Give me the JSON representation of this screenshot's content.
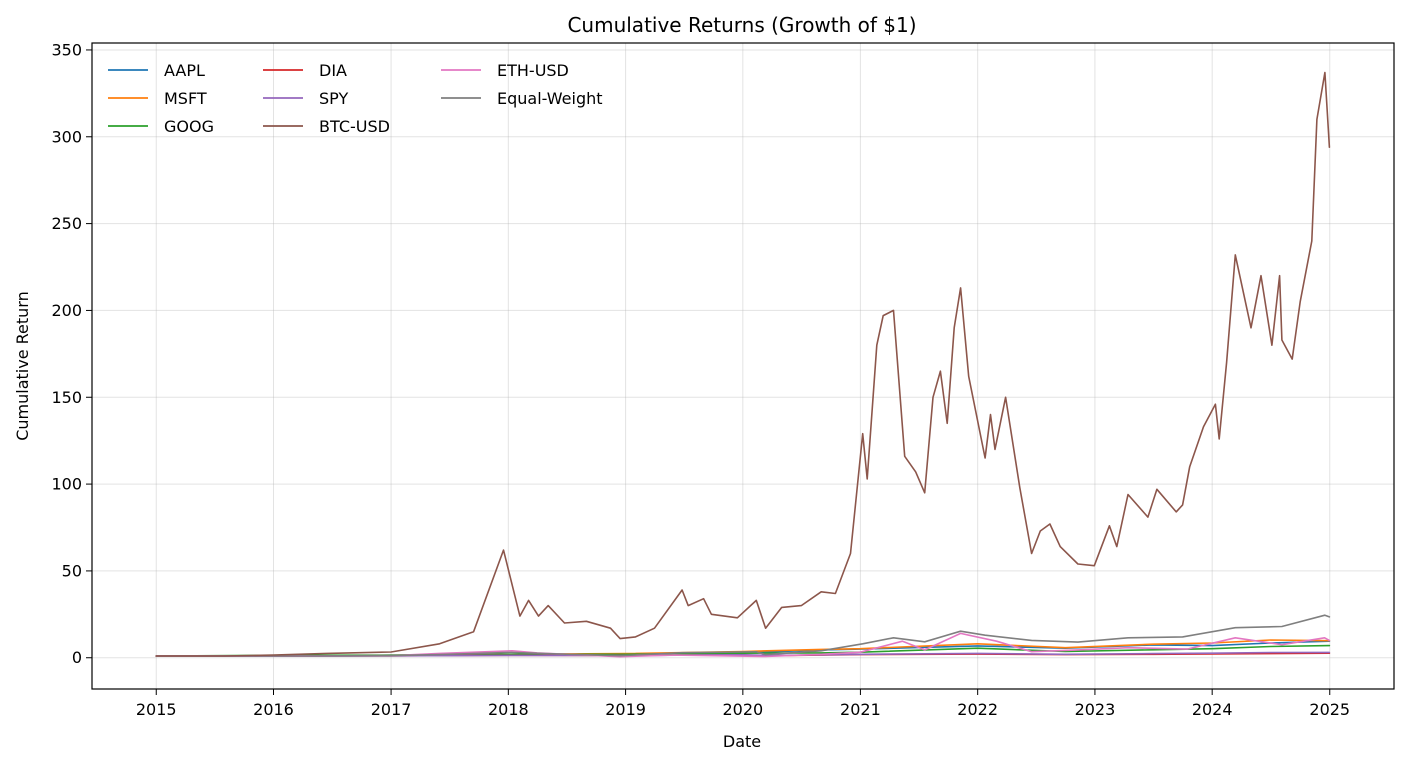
{
  "chart_data": {
    "type": "line",
    "title": "Cumulative Returns (Growth of $1)",
    "xlabel": "Date",
    "ylabel": "Cumulative Return",
    "xlim": [
      "2014-06-15",
      "2025-07-20"
    ],
    "ylim": [
      -18,
      354
    ],
    "xticks": [
      "2015",
      "2016",
      "2017",
      "2018",
      "2019",
      "2020",
      "2021",
      "2022",
      "2023",
      "2024",
      "2025"
    ],
    "yticks": [
      0,
      50,
      100,
      150,
      200,
      250,
      300,
      350
    ],
    "grid": true,
    "legend_position": "top-left",
    "colors": {
      "AAPL": "#1f77b4",
      "MSFT": "#ff7f0e",
      "GOOG": "#2ca02c",
      "DIA": "#d62728",
      "SPY": "#9467bd",
      "BTC-USD": "#8c564b",
      "ETH-USD": "#e377c2",
      "Equal-Weight": "#7f7f7f"
    },
    "series": [
      {
        "name": "AAPL",
        "x": [
          "2015-01-01",
          "2016-01-01",
          "2017-01-01",
          "2018-01-01",
          "2019-01-01",
          "2020-01-01",
          "2020-09-01",
          "2021-01-01",
          "2022-01-01",
          "2022-10-01",
          "2023-07-01",
          "2024-01-01",
          "2024-07-01",
          "2024-12-31"
        ],
        "y": [
          1.0,
          0.95,
          1.1,
          1.6,
          1.5,
          2.8,
          4.5,
          5.0,
          6.8,
          5.5,
          7.4,
          7.0,
          8.5,
          9.5
        ]
      },
      {
        "name": "MSFT",
        "x": [
          "2015-01-01",
          "2016-01-01",
          "2017-01-01",
          "2018-01-01",
          "2019-01-01",
          "2020-01-01",
          "2020-09-01",
          "2021-01-01",
          "2022-01-01",
          "2022-10-01",
          "2023-07-01",
          "2024-01-01",
          "2024-07-01",
          "2024-12-31"
        ],
        "y": [
          1.0,
          1.2,
          1.4,
          2.0,
          2.4,
          3.6,
          4.8,
          5.2,
          8.0,
          5.8,
          7.8,
          8.5,
          10.2,
          9.8
        ]
      },
      {
        "name": "GOOG",
        "x": [
          "2015-01-01",
          "2016-01-01",
          "2017-01-01",
          "2018-01-01",
          "2019-01-01",
          "2020-01-01",
          "2020-09-01",
          "2021-01-01",
          "2022-01-01",
          "2022-10-01",
          "2023-07-01",
          "2024-01-01",
          "2024-07-01",
          "2024-12-31"
        ],
        "y": [
          1.0,
          1.4,
          1.5,
          2.0,
          2.0,
          2.6,
          2.8,
          3.2,
          5.5,
          3.6,
          4.6,
          5.2,
          6.5,
          7.0
        ]
      },
      {
        "name": "DIA",
        "x": [
          "2015-01-01",
          "2016-01-01",
          "2017-01-01",
          "2018-01-01",
          "2019-01-01",
          "2020-01-01",
          "2020-03-20",
          "2021-01-01",
          "2022-01-01",
          "2022-10-01",
          "2023-07-01",
          "2024-01-01",
          "2024-07-01",
          "2024-12-31"
        ],
        "y": [
          1.0,
          1.0,
          1.1,
          1.4,
          1.35,
          1.6,
          1.2,
          1.8,
          2.1,
          1.8,
          2.0,
          2.2,
          2.4,
          2.6
        ]
      },
      {
        "name": "SPY",
        "x": [
          "2015-01-01",
          "2016-01-01",
          "2017-01-01",
          "2018-01-01",
          "2019-01-01",
          "2020-01-01",
          "2020-03-20",
          "2021-01-01",
          "2022-01-01",
          "2022-10-01",
          "2023-07-01",
          "2024-01-01",
          "2024-07-01",
          "2024-12-31"
        ],
        "y": [
          1.0,
          1.0,
          1.1,
          1.35,
          1.3,
          1.7,
          1.3,
          2.0,
          2.5,
          2.0,
          2.4,
          2.6,
          3.0,
          3.1
        ]
      },
      {
        "name": "BTC-USD",
        "x": [
          "2015-01-01",
          "2015-08-01",
          "2016-01-01",
          "2016-06-15",
          "2017-01-01",
          "2017-06-01",
          "2017-09-15",
          "2017-12-17",
          "2018-02-06",
          "2018-03-05",
          "2018-04-05",
          "2018-05-05",
          "2018-06-25",
          "2018-09-01",
          "2018-11-15",
          "2018-12-15",
          "2019-02-01",
          "2019-04-01",
          "2019-06-26",
          "2019-07-15",
          "2019-09-01",
          "2019-09-25",
          "2019-12-15",
          "2020-02-12",
          "2020-03-12",
          "2020-05-01",
          "2020-07-01",
          "2020-09-01",
          "2020-10-15",
          "2020-12-01",
          "2021-01-08",
          "2021-01-22",
          "2021-02-21",
          "2021-03-13",
          "2021-04-14",
          "2021-05-19",
          "2021-06-22",
          "2021-07-20",
          "2021-08-15",
          "2021-09-07",
          "2021-09-28",
          "2021-10-20",
          "2021-11-09",
          "2021-12-04",
          "2022-01-24",
          "2022-02-10",
          "2022-02-24",
          "2022-03-29",
          "2022-05-12",
          "2022-06-18",
          "2022-07-15",
          "2022-08-14",
          "2022-09-15",
          "2022-11-09",
          "2022-12-30",
          "2023-02-15",
          "2023-03-10",
          "2023-04-14",
          "2023-06-15",
          "2023-07-13",
          "2023-09-11",
          "2023-10-01",
          "2023-10-23",
          "2023-12-05",
          "2024-01-11",
          "2024-01-23",
          "2024-02-15",
          "2024-03-13",
          "2024-05-01",
          "2024-06-01",
          "2024-07-05",
          "2024-07-29",
          "2024-08-05",
          "2024-09-06",
          "2024-10-01",
          "2024-11-06",
          "2024-11-22",
          "2024-12-17",
          "2024-12-31"
        ],
        "y": [
          1.0,
          1.0,
          1.6,
          2.5,
          3.3,
          8.0,
          15,
          62,
          24,
          33,
          24,
          30,
          20,
          21,
          17,
          11,
          12,
          17,
          39,
          30,
          34,
          25,
          23,
          33,
          17,
          29,
          30,
          38,
          37,
          60,
          129,
          103,
          180,
          197,
          200,
          116,
          107,
          95,
          150,
          165,
          135,
          190,
          213,
          162,
          115,
          140,
          120,
          150,
          98,
          60,
          73,
          77,
          64,
          54,
          53,
          76,
          64,
          94,
          81,
          97,
          84,
          88,
          110,
          133,
          146,
          126,
          170,
          232,
          190,
          220,
          180,
          220,
          183,
          172,
          205,
          240,
          310,
          337,
          294
        ]
      },
      {
        "name": "ETH-USD",
        "x": [
          "2015-01-01",
          "2016-01-01",
          "2017-01-01",
          "2017-06-01",
          "2018-01-13",
          "2018-04-01",
          "2018-12-15",
          "2019-06-01",
          "2020-03-12",
          "2020-09-01",
          "2021-01-01",
          "2021-05-12",
          "2021-07-20",
          "2021-11-09",
          "2022-03-01",
          "2022-06-18",
          "2022-11-09",
          "2023-04-14",
          "2023-10-15",
          "2024-03-13",
          "2024-08-05",
          "2024-12-16",
          "2024-12-31"
        ],
        "y": [
          1.0,
          1.0,
          1.2,
          2.5,
          4.0,
          2.8,
          0.6,
          1.5,
          0.7,
          2.0,
          3.2,
          9.5,
          4.5,
          14,
          9.5,
          3.5,
          4.5,
          5.8,
          5.0,
          11.5,
          7.5,
          11.5,
          10.0
        ]
      },
      {
        "name": "Equal-Weight",
        "x": [
          "2015-01-01",
          "2016-01-01",
          "2017-01-01",
          "2017-06-01",
          "2018-01-10",
          "2018-06-01",
          "2018-12-15",
          "2019-06-26",
          "2020-02-12",
          "2020-03-12",
          "2020-09-01",
          "2021-01-08",
          "2021-04-14",
          "2021-07-20",
          "2021-11-09",
          "2022-01-24",
          "2022-06-18",
          "2022-11-09",
          "2023-04-14",
          "2023-10-01",
          "2024-03-13",
          "2024-08-05",
          "2024-12-17",
          "2024-12-31"
        ],
        "y": [
          1.0,
          1.0,
          1.25,
          1.8,
          3.1,
          2.2,
          1.2,
          2.9,
          3.4,
          1.8,
          4.0,
          8.0,
          11.5,
          9.2,
          15.3,
          13.0,
          10.0,
          9.0,
          11.5,
          12.0,
          17.3,
          18.0,
          24.5,
          23.5
        ]
      }
    ]
  }
}
